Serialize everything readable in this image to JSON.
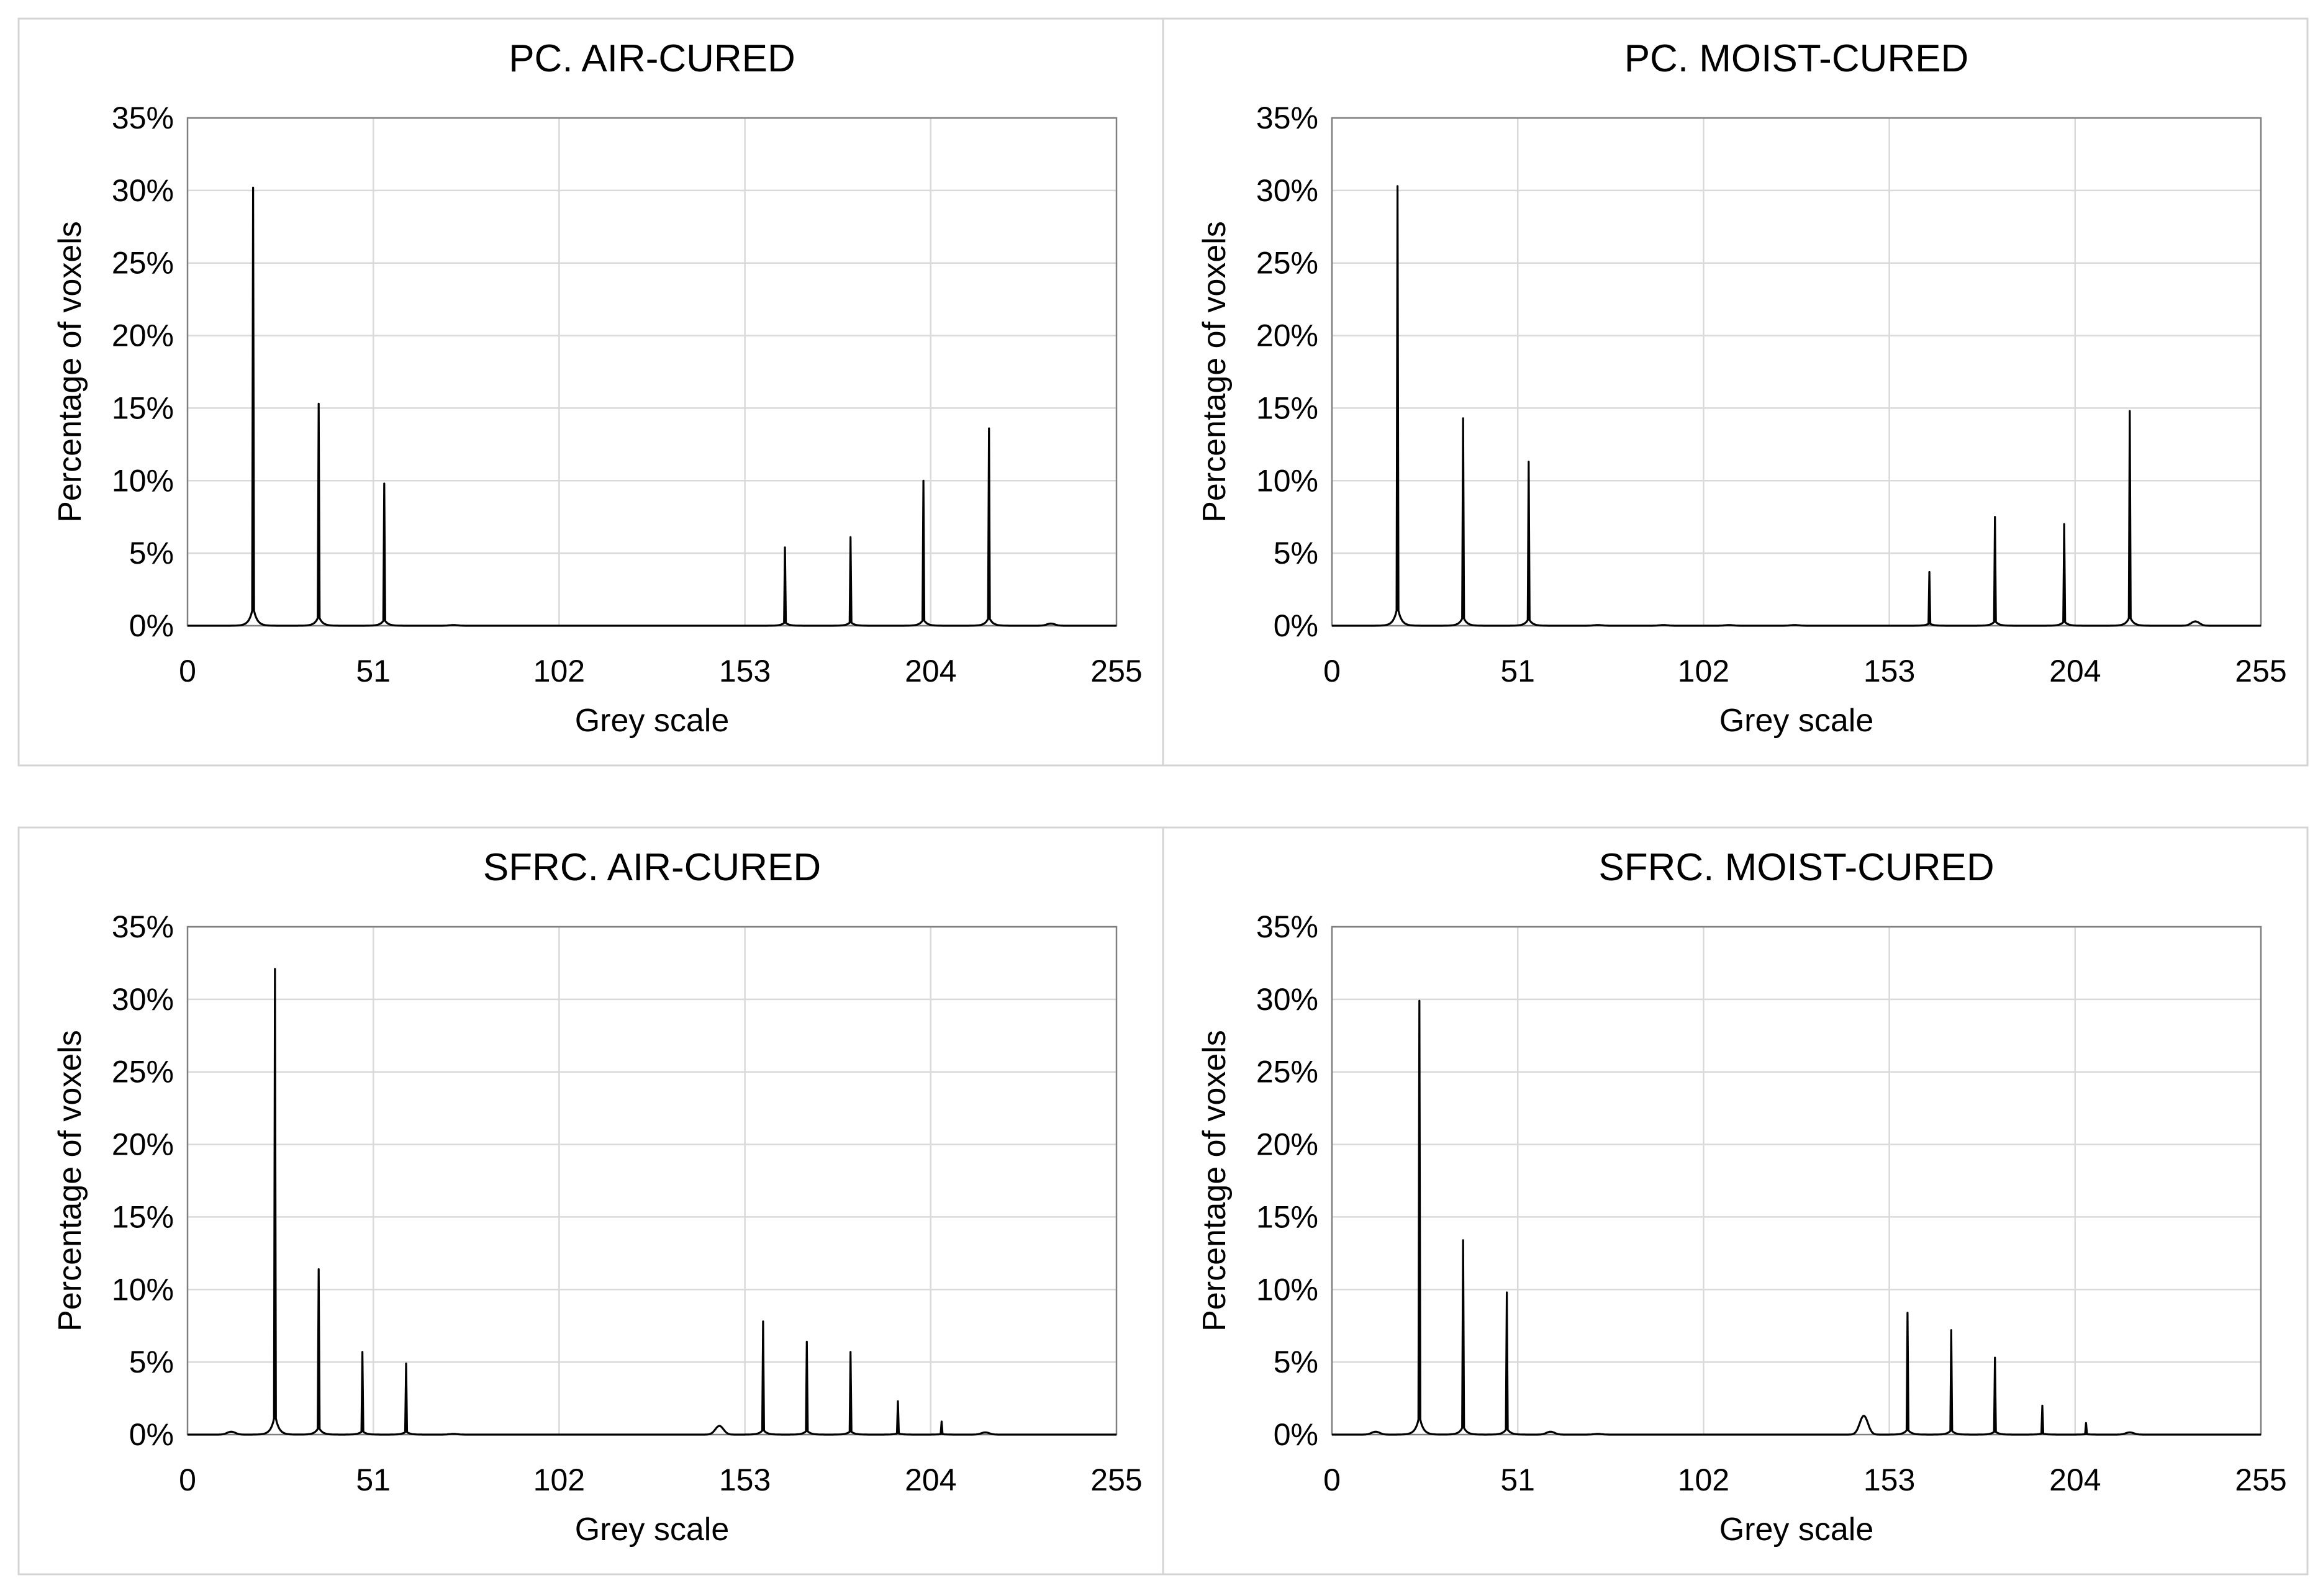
{
  "figure": {
    "panels": 4
  },
  "colors": {
    "line": "#000000",
    "grid": "#d9d9d9",
    "plot_border": "#7f7f7f",
    "panel_border": "#d4d4d4"
  },
  "chart_data": [
    {
      "type": "line",
      "title": "PC. AIR-CURED",
      "xlabel": "Grey scale",
      "ylabel": "Percentage of voxels",
      "xlim": [
        0,
        255
      ],
      "ylim": [
        0,
        35
      ],
      "xticks": [
        0,
        51,
        102,
        153,
        204,
        255
      ],
      "yticks": [
        0,
        5,
        10,
        15,
        20,
        25,
        30,
        35
      ],
      "ytick_labels": [
        "0%",
        "5%",
        "10%",
        "15%",
        "20%",
        "25%",
        "30%",
        "35%"
      ],
      "grid": true,
      "series": [
        {
          "name": "PC air-cured",
          "peaks": [
            [
              18,
              30.2
            ],
            [
              36,
              15.3
            ],
            [
              54,
              9.8
            ],
            [
              164,
              5.4
            ],
            [
              182,
              6.1
            ],
            [
              202,
              10.0
            ],
            [
              220,
              13.6
            ]
          ],
          "minor": [
            [
              73,
              0.05
            ],
            [
              237,
              0.15
            ]
          ]
        }
      ]
    },
    {
      "type": "line",
      "title": "PC. MOIST-CURED",
      "xlabel": "Grey scale",
      "ylabel": "Percentage of voxels",
      "xlim": [
        0,
        255
      ],
      "ylim": [
        0,
        35
      ],
      "xticks": [
        0,
        51,
        102,
        153,
        204,
        255
      ],
      "yticks": [
        0,
        5,
        10,
        15,
        20,
        25,
        30,
        35
      ],
      "ytick_labels": [
        "0%",
        "5%",
        "10%",
        "15%",
        "20%",
        "25%",
        "30%",
        "35%"
      ],
      "grid": true,
      "series": [
        {
          "name": "PC moist-cured",
          "peaks": [
            [
              18,
              30.3
            ],
            [
              36,
              14.3
            ],
            [
              54,
              11.3
            ],
            [
              164,
              3.7
            ],
            [
              182,
              7.5
            ],
            [
              201,
              7.0
            ],
            [
              219,
              14.8
            ]
          ],
          "minor": [
            [
              73,
              0.05
            ],
            [
              91,
              0.05
            ],
            [
              109,
              0.05
            ],
            [
              127,
              0.05
            ],
            [
              237,
              0.3
            ]
          ]
        }
      ]
    },
    {
      "type": "line",
      "title": "SFRC. AIR-CURED",
      "xlabel": "Grey scale",
      "ylabel": "Percentage of voxels",
      "xlim": [
        0,
        255
      ],
      "ylim": [
        0,
        35
      ],
      "xticks": [
        0,
        51,
        102,
        153,
        204,
        255
      ],
      "yticks": [
        0,
        5,
        10,
        15,
        20,
        25,
        30,
        35
      ],
      "ytick_labels": [
        "0%",
        "5%",
        "10%",
        "15%",
        "20%",
        "25%",
        "30%",
        "35%"
      ],
      "grid": true,
      "series": [
        {
          "name": "SFRC air-cured",
          "peaks": [
            [
              24,
              32.1
            ],
            [
              36,
              11.4
            ],
            [
              48,
              5.7
            ],
            [
              60,
              4.9
            ],
            [
              158,
              7.8
            ],
            [
              170,
              6.4
            ],
            [
              182,
              5.7
            ],
            [
              195,
              2.3
            ],
            [
              207,
              0.9
            ]
          ],
          "minor": [
            [
              12,
              0.2
            ],
            [
              73,
              0.05
            ],
            [
              146,
              0.6
            ],
            [
              219,
              0.15
            ]
          ]
        }
      ]
    },
    {
      "type": "line",
      "title": "SFRC. MOIST-CURED",
      "xlabel": "Grey scale",
      "ylabel": "Percentage of voxels",
      "xlim": [
        0,
        255
      ],
      "ylim": [
        0,
        35
      ],
      "xticks": [
        0,
        51,
        102,
        153,
        204,
        255
      ],
      "yticks": [
        0,
        5,
        10,
        15,
        20,
        25,
        30,
        35
      ],
      "ytick_labels": [
        "0%",
        "5%",
        "10%",
        "15%",
        "20%",
        "25%",
        "30%",
        "35%"
      ],
      "grid": true,
      "series": [
        {
          "name": "SFRC moist-cured",
          "peaks": [
            [
              24,
              29.9
            ],
            [
              36,
              13.4
            ],
            [
              48,
              9.8
            ],
            [
              158,
              8.4
            ],
            [
              170,
              7.2
            ],
            [
              182,
              5.3
            ],
            [
              195,
              2.0
            ],
            [
              207,
              0.8
            ]
          ],
          "minor": [
            [
              12,
              0.2
            ],
            [
              60,
              0.2
            ],
            [
              73,
              0.05
            ],
            [
              146,
              1.3
            ],
            [
              219,
              0.15
            ]
          ]
        }
      ]
    }
  ]
}
